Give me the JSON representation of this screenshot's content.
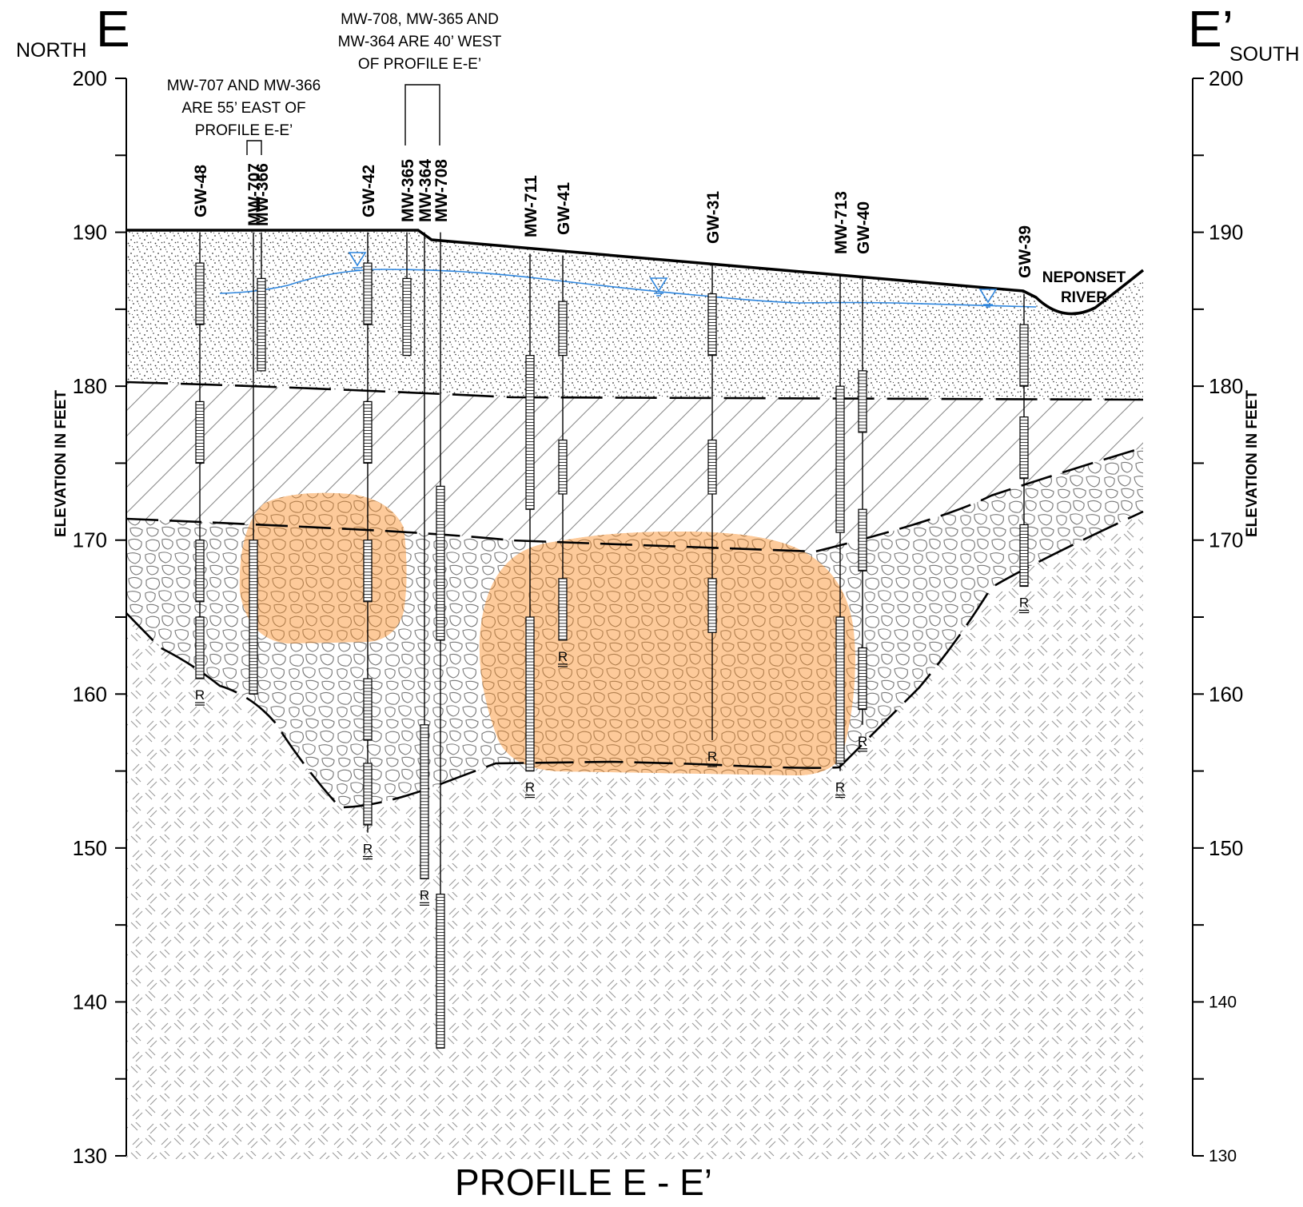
{
  "section_left": "E",
  "section_right": "E’",
  "direction_left": "NORTH",
  "direction_right": "SOUTH",
  "title": "PROFILE E - E’",
  "axis": {
    "label": "ELEVATION IN FEET",
    "ymin": 130,
    "ymax": 200,
    "tick_labels": [
      "200",
      "190",
      "180",
      "170",
      "160",
      "150",
      "140",
      "130"
    ]
  },
  "notes": {
    "east": [
      "MW-707 AND MW-366",
      "ARE 55’ EAST OF",
      "PROFILE E-E’"
    ],
    "west": [
      "MW-708, MW-365 AND",
      "MW-364 ARE 40’ WEST",
      "OF PROFILE E-E’"
    ]
  },
  "river_label": [
    "NEPONSET",
    "RIVER"
  ],
  "refusal_mark": "R",
  "wells": [
    {
      "name": "GW-48",
      "top": 190.0,
      "bottom": 161.0,
      "screens": [
        [
          188,
          184
        ],
        [
          179,
          175
        ],
        [
          170,
          166
        ],
        [
          165,
          161
        ]
      ],
      "refusal": true
    },
    {
      "name": "MW-707",
      "top": 190.0,
      "bottom": 160.0,
      "screens": [
        [
          170,
          160
        ]
      ],
      "refusal": false
    },
    {
      "name": "MW-366",
      "top": 190.0,
      "bottom": 181.0,
      "screens": [
        [
          187,
          181
        ]
      ],
      "refusal": false
    },
    {
      "name": "GW-42",
      "top": 190.0,
      "bottom": 151.0,
      "screens": [
        [
          188,
          184
        ],
        [
          179,
          175
        ],
        [
          170,
          166
        ],
        [
          161,
          157
        ],
        [
          155.5,
          151.5
        ]
      ],
      "refusal": true
    },
    {
      "name": "MW-365",
      "top": 190.0,
      "bottom": 182.0,
      "screens": [
        [
          187,
          182
        ]
      ],
      "refusal": false
    },
    {
      "name": "MW-364",
      "top": 190.0,
      "bottom": 148.0,
      "screens": [
        [
          158,
          148
        ]
      ],
      "refusal": true
    },
    {
      "name": "MW-708",
      "top": 190.0,
      "bottom": 137.0,
      "screens": [
        [
          173.5,
          163.5
        ],
        [
          147,
          137
        ]
      ],
      "refusal": false
    },
    {
      "name": "MW-711",
      "top": 188.6,
      "bottom": 155.0,
      "screens": [
        [
          182,
          172
        ],
        [
          165,
          155
        ]
      ],
      "refusal": true
    },
    {
      "name": "GW-41",
      "top": 188.5,
      "bottom": 163.5,
      "screens": [
        [
          185.5,
          182
        ],
        [
          176.5,
          173
        ],
        [
          167.5,
          163.5
        ]
      ],
      "refusal": true
    },
    {
      "name": "GW-31",
      "top": 187.9,
      "bottom": 157.0,
      "screens": [
        [
          186,
          182
        ],
        [
          176.5,
          173
        ],
        [
          167.5,
          164
        ]
      ],
      "refusal": true
    },
    {
      "name": "MW-713",
      "top": 187.2,
      "bottom": 155.0,
      "screens": [
        [
          180,
          170.5
        ],
        [
          165,
          155.5
        ]
      ],
      "refusal": true
    },
    {
      "name": "GW-40",
      "top": 187.0,
      "bottom": 158.0,
      "screens": [
        [
          181,
          177
        ],
        [
          172,
          168
        ],
        [
          163,
          159
        ]
      ],
      "refusal": true
    },
    {
      "name": "GW-39",
      "top": 186.0,
      "bottom": 167.0,
      "screens": [
        [
          184,
          180
        ],
        [
          178,
          174
        ],
        [
          171,
          167
        ]
      ],
      "refusal": true
    }
  ],
  "colors": {
    "line": "#000000",
    "water_table": "#2e86de",
    "contaminant_plume": "#fb8a1e",
    "cobble_stroke": "#777777",
    "bedrock_hatch": "#9a9a9a",
    "till_hatch": "#8a8a8a"
  },
  "icons": [
    "water-table-symbol-icon",
    "refusal-icon"
  ]
}
